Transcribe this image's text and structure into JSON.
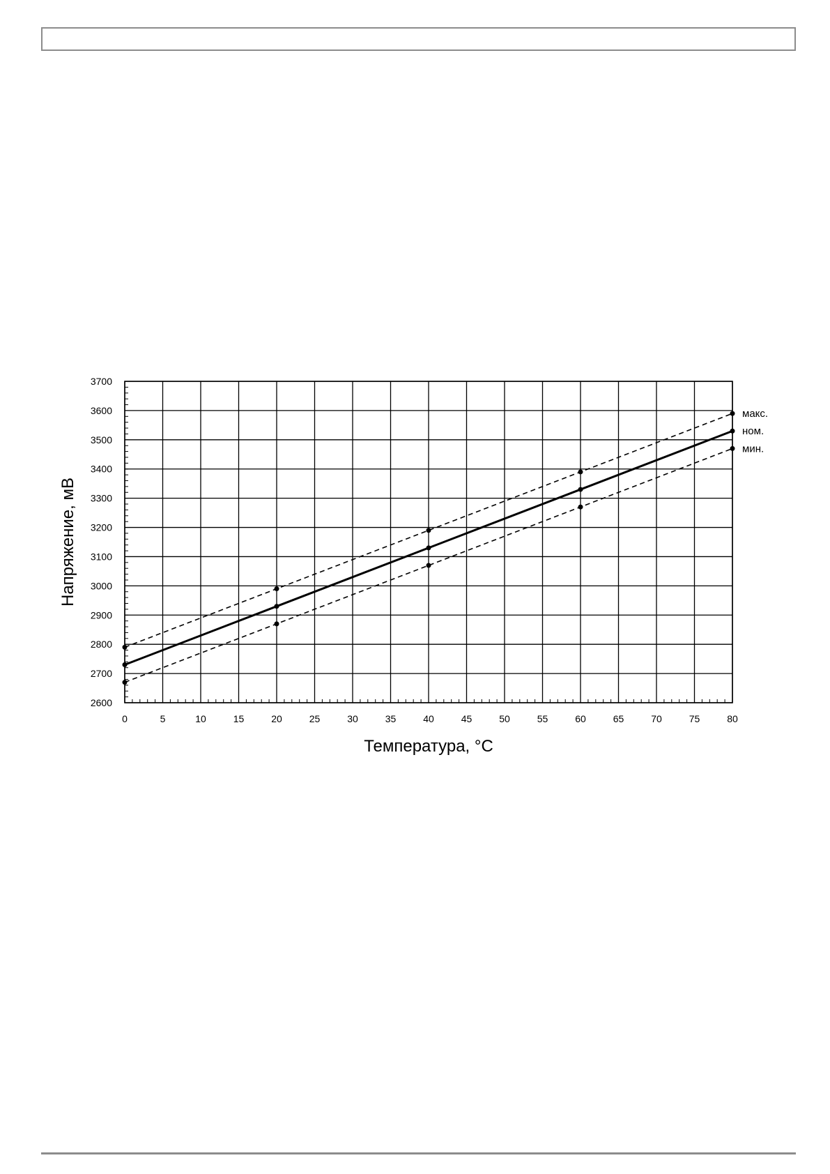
{
  "chart_data": {
    "type": "line",
    "xlabel": "Температура, °C",
    "ylabel": "Напряжение, мВ",
    "xlim": [
      0,
      80
    ],
    "ylim": [
      2600,
      3700
    ],
    "x_ticks": [
      "0",
      "5",
      "10",
      "15",
      "20",
      "25",
      "30",
      "35",
      "40",
      "45",
      "50",
      "55",
      "60",
      "65",
      "70",
      "75",
      "80"
    ],
    "y_ticks": [
      "2600",
      "2700",
      "2800",
      "2900",
      "3000",
      "3100",
      "3200",
      "3300",
      "3400",
      "3500",
      "3600",
      "3700"
    ],
    "grid": true,
    "x": [
      0,
      20,
      40,
      60,
      80
    ],
    "series": [
      {
        "name": "макс.",
        "style": "dashed",
        "values": [
          2790,
          2990,
          3190,
          3390,
          3590
        ]
      },
      {
        "name": "ном.",
        "style": "solid",
        "values": [
          2730,
          2930,
          3130,
          3330,
          3530
        ]
      },
      {
        "name": "мин.",
        "style": "dashed",
        "values": [
          2670,
          2870,
          3070,
          3270,
          3470
        ]
      }
    ],
    "color": "#000000"
  },
  "page": {
    "rule_color": "#8c8c8c"
  }
}
